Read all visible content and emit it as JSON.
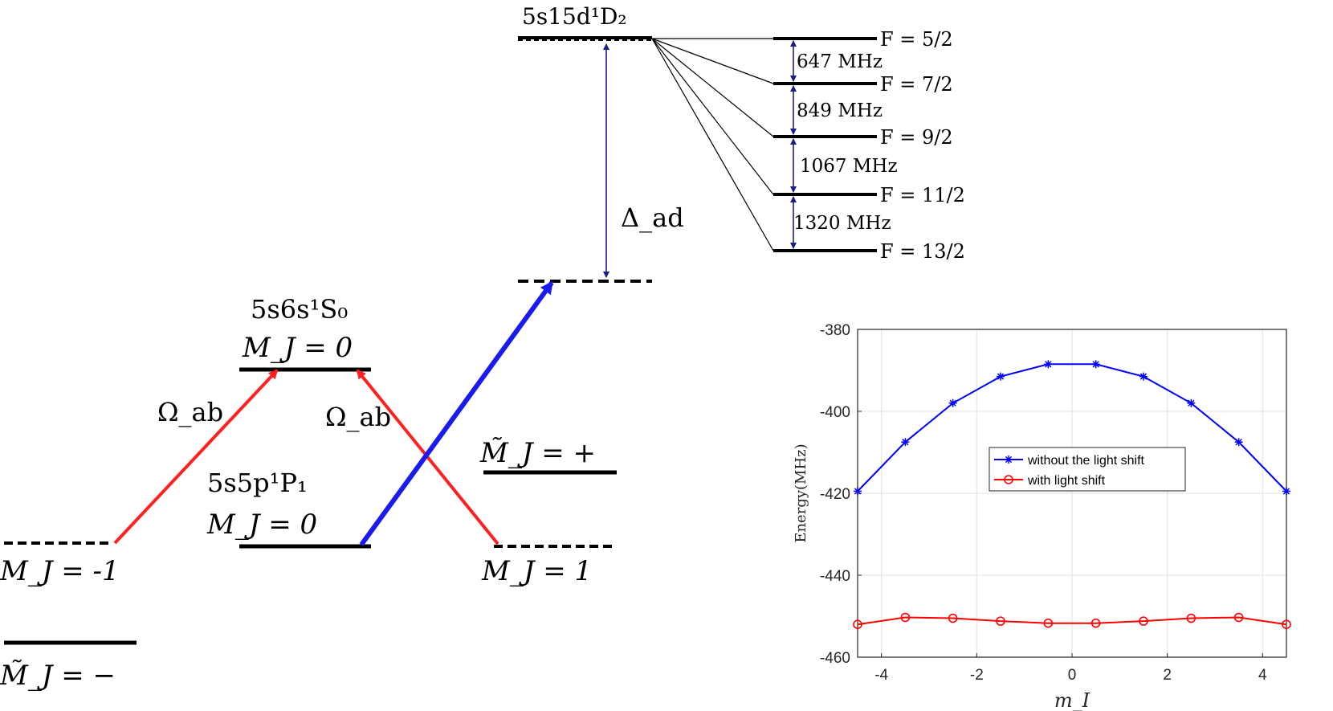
{
  "diagram": {
    "states": {
      "s15d": "5s15d¹D₂",
      "s6s": "5s6s¹S₀",
      "s6s_mj": "M_J = 0",
      "s5p": "5s5p¹P₁",
      "s5p_mj": "M_J = 0",
      "mj_minus1": "M_J = -1",
      "mj_tilde_minus": "M̃_J = −",
      "mj_plus1": "M_J = 1",
      "mj_tilde_plus": "M̃_J = +"
    },
    "couplings": {
      "omega_left": "Ω_ab",
      "omega_right": "Ω_ab",
      "detuning": "Δ_ad"
    },
    "hyperfine": {
      "levels": [
        "F = 5/2",
        "F = 7/2",
        "F = 9/2",
        "F = 11/2",
        "F = 13/2"
      ],
      "splittings": [
        "647 MHz",
        "849 MHz",
        "1067 MHz",
        "1320 MHz"
      ]
    },
    "colors": {
      "red": "#ff2020",
      "blue": "#1a1aee",
      "navy": "#1c1c8c",
      "black": "#000000"
    }
  },
  "chart_data": {
    "type": "line",
    "xlabel": "m_I",
    "ylabel": "Energy(MHz)",
    "xlim": [
      -4.5,
      4.5
    ],
    "ylim": [
      -460,
      -380
    ],
    "xticks": [
      -4,
      -2,
      0,
      2,
      4
    ],
    "yticks": [
      -460,
      -440,
      -420,
      -400,
      -380
    ],
    "grid": true,
    "legend_position": "center",
    "x": [
      -4.5,
      -3.5,
      -2.5,
      -1.5,
      -0.5,
      0.5,
      1.5,
      2.5,
      3.5,
      4.5
    ],
    "series": [
      {
        "name": "without the light shift",
        "color": "#0000ff",
        "marker": "star",
        "values": [
          -419.5,
          -407.5,
          -398.0,
          -391.5,
          -388.5,
          -388.5,
          -391.5,
          -398.0,
          -407.5,
          -419.5
        ]
      },
      {
        "name": "with light shift",
        "color": "#ff0000",
        "marker": "circle",
        "values": [
          -452.0,
          -450.3,
          -450.5,
          -451.2,
          -451.7,
          -451.7,
          -451.2,
          -450.5,
          -450.3,
          -452.0
        ]
      }
    ]
  }
}
